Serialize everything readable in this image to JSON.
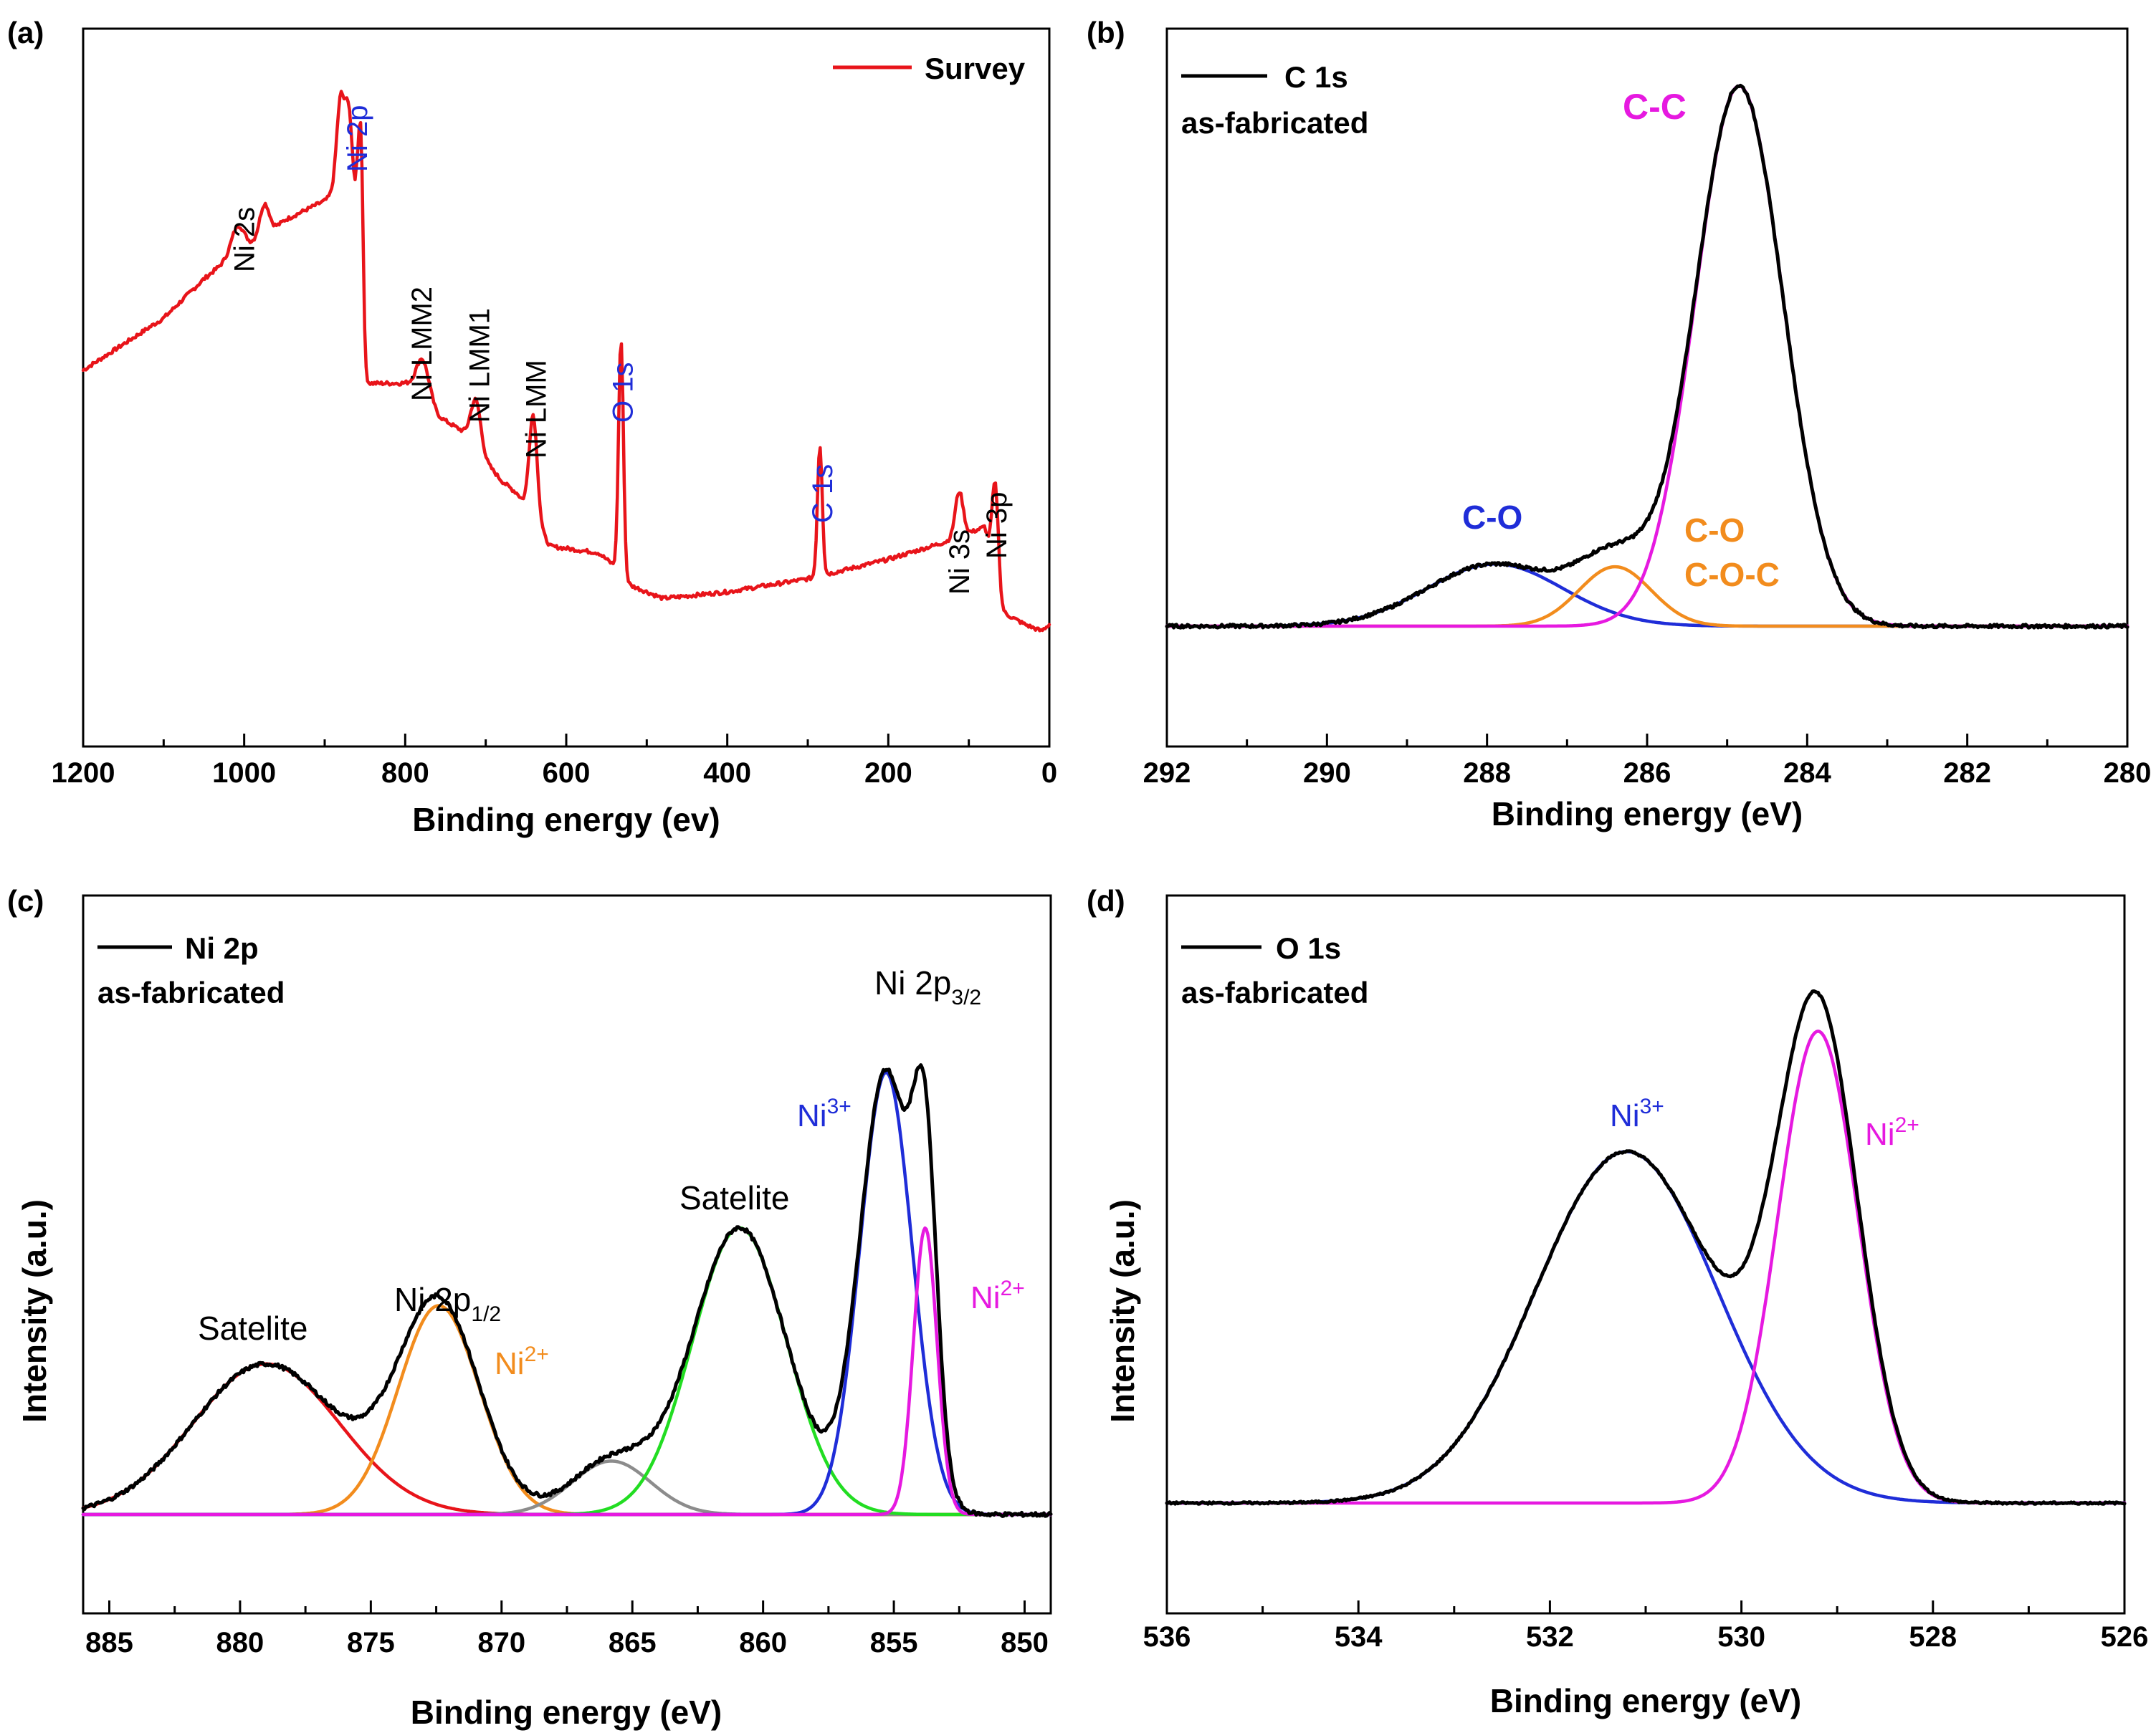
{
  "chart_data": [
    {
      "panel": "(a)",
      "type": "line",
      "xlabel": "Binding energy (ev)",
      "ylabel": "",
      "xlim": [
        1200,
        0
      ],
      "xticks": [
        1200,
        1000,
        800,
        600,
        400,
        200,
        0
      ],
      "legend": [
        {
          "name": "Survey",
          "color": "#e8141a"
        }
      ],
      "series": [
        {
          "name": "Survey",
          "color": "#e8141a",
          "baseline": [
            [
              1200,
              0.52
            ],
            [
              1100,
              0.6
            ],
            [
              1050,
              0.66
            ],
            [
              1010,
              0.7
            ],
            [
              980,
              0.72
            ],
            [
              950,
              0.75
            ],
            [
              900,
              0.78
            ],
            [
              880,
              0.8
            ],
            [
              860,
              0.78
            ],
            [
              850,
              0.5
            ],
            [
              800,
              0.5
            ],
            [
              780,
              0.49
            ],
            [
              760,
              0.45
            ],
            [
              720,
              0.42
            ],
            [
              700,
              0.38
            ],
            [
              680,
              0.35
            ],
            [
              660,
              0.33
            ],
            [
              640,
              0.29
            ],
            [
              620,
              0.25
            ],
            [
              560,
              0.24
            ],
            [
              540,
              0.22
            ],
            [
              520,
              0.19
            ],
            [
              480,
              0.17
            ],
            [
              400,
              0.18
            ],
            [
              300,
              0.2
            ],
            [
              200,
              0.23
            ],
            [
              120,
              0.26
            ],
            [
              80,
              0.28
            ],
            [
              60,
              0.15
            ],
            [
              30,
              0.13
            ],
            [
              10,
              0.12
            ],
            [
              0,
              0.13
            ]
          ],
          "peaks": [
            [
              1008,
              0.04,
              8
            ],
            [
              975,
              0.05,
              6
            ],
            [
              880,
              0.14,
              5
            ],
            [
              870,
              0.12,
              4
            ],
            [
              855,
              0.25,
              3
            ],
            [
              778,
              0.05,
              8
            ],
            [
              712,
              0.07,
              6
            ],
            [
              641,
              0.16,
              5
            ],
            [
              532,
              0.36,
              3
            ],
            [
              285,
              0.2,
              3
            ],
            [
              112,
              0.07,
              5
            ],
            [
              67,
              0.15,
              4
            ]
          ]
        }
      ],
      "annotations": [
        {
          "text": "Ni 2s",
          "x": 1000,
          "color": "#000000"
        },
        {
          "text": "Ni 2p",
          "x": 860,
          "color": "#1f2dd8"
        },
        {
          "text": "Ni LMM2",
          "x": 780,
          "color": "#000000"
        },
        {
          "text": "Ni LMM1",
          "x": 708,
          "color": "#000000"
        },
        {
          "text": "Ni LMM",
          "x": 638,
          "color": "#000000"
        },
        {
          "text": "O 1s",
          "x": 530,
          "color": "#1f2dd8"
        },
        {
          "text": "C 1s",
          "x": 282,
          "color": "#1f2dd8"
        },
        {
          "text": "Ni 3s",
          "x": 112,
          "color": "#000000"
        },
        {
          "text": "Ni 3p",
          "x": 66,
          "color": "#000000"
        }
      ]
    },
    {
      "panel": "(b)",
      "type": "line",
      "xlabel": "Binding energy (eV)",
      "ylabel": "",
      "xlim": [
        292,
        280
      ],
      "xticks": [
        292,
        290,
        288,
        286,
        284,
        282,
        280
      ],
      "legend": [
        {
          "name": "C 1s",
          "color": "#000000"
        }
      ],
      "sample_label": "as-fabricated",
      "series": [
        {
          "name": "C-O",
          "color": "#1f2dd8",
          "peaks": [
            [
              287.9,
              0.115,
              0.85
            ]
          ]
        },
        {
          "name": "C-O / C-O-C",
          "color": "#f28c1d",
          "peaks": [
            [
              286.4,
              0.11,
              0.45
            ]
          ]
        },
        {
          "name": "C-C",
          "color": "#e619e0",
          "peaks": [
            [
              284.85,
              1.0,
              0.55
            ]
          ]
        },
        {
          "name": "C 1s",
          "color": "#000000",
          "envelope": true,
          "noise": 0.006
        }
      ],
      "annotations": [
        {
          "text": "C-C",
          "color": "#e619e0"
        },
        {
          "text": "C-O",
          "color": "#1f2dd8"
        },
        {
          "text": "C-O",
          "color": "#f28c1d"
        },
        {
          "text": "C-O-C",
          "color": "#f28c1d"
        }
      ]
    },
    {
      "panel": "(c)",
      "type": "line",
      "xlabel": "Binding energy (eV)",
      "ylabel": "Intensity (a.u.)",
      "xlim": [
        886,
        849
      ],
      "xticks": [
        885,
        880,
        875,
        870,
        865,
        860,
        855,
        850
      ],
      "legend": [
        {
          "name": "Ni 2p",
          "color": "#000000"
        }
      ],
      "sample_label": "as-fabricated",
      "series": [
        {
          "name": "Satelite (880)",
          "color": "#e8141a",
          "peaks": [
            [
              879.0,
              0.31,
              2.8
            ]
          ]
        },
        {
          "name": "Ni2+ 2p1/2",
          "color": "#f28c1d",
          "peaks": [
            [
              872.4,
              0.43,
              1.55
            ]
          ]
        },
        {
          "name": "Satelite (866)",
          "color": "#8c8c8c",
          "peaks": [
            [
              865.8,
              0.11,
              1.5
            ]
          ]
        },
        {
          "name": "Satelite (861)",
          "color": "#22dd22",
          "peaks": [
            [
              860.9,
              0.59,
              1.8
            ]
          ]
        },
        {
          "name": "Ni3+",
          "color": "#1f2dd8",
          "peaks": [
            [
              855.3,
              0.91,
              1.0
            ]
          ]
        },
        {
          "name": "Ni2+",
          "color": "#e619e0",
          "peaks": [
            [
              853.8,
              0.59,
              0.45
            ]
          ]
        },
        {
          "name": "Ni 2p",
          "color": "#000000",
          "envelope": true,
          "noise": 0.008
        }
      ],
      "annotations": [
        {
          "text": "Satelite",
          "color": "#000000"
        },
        {
          "text": "Ni 2p",
          "sub": "1/2",
          "color": "#000000"
        },
        {
          "text": "Ni",
          "sup": "2+",
          "color": "#f28c1d"
        },
        {
          "text": "Satelite",
          "color": "#000000"
        },
        {
          "text": "Ni 2p",
          "sub": "3/2",
          "color": "#000000"
        },
        {
          "text": "Ni",
          "sup": "3+",
          "color": "#1f2dd8"
        },
        {
          "text": "Ni",
          "sup": "2+",
          "color": "#e619e0"
        }
      ]
    },
    {
      "panel": "(d)",
      "type": "line",
      "xlabel": "Binding energy (eV)",
      "ylabel": "Intensity (a.u.)",
      "xlim": [
        536,
        526
      ],
      "xticks": [
        536,
        534,
        532,
        530,
        528,
        526
      ],
      "legend": [
        {
          "name": "O 1s",
          "color": "#000000"
        }
      ],
      "sample_label": "as-fabricated",
      "series": [
        {
          "name": "Ni3+",
          "color": "#1f2dd8",
          "peaks": [
            [
              531.2,
              0.73,
              0.95
            ]
          ]
        },
        {
          "name": "Ni2+",
          "color": "#e619e0",
          "peaks": [
            [
              529.2,
              0.98,
              0.42
            ]
          ]
        },
        {
          "name": "O 1s",
          "color": "#000000",
          "envelope": true,
          "noise": 0.004
        }
      ],
      "annotations": [
        {
          "text": "Ni",
          "sup": "3+",
          "color": "#1f2dd8"
        },
        {
          "text": "Ni",
          "sup": "2+",
          "color": "#e619e0"
        }
      ]
    }
  ]
}
